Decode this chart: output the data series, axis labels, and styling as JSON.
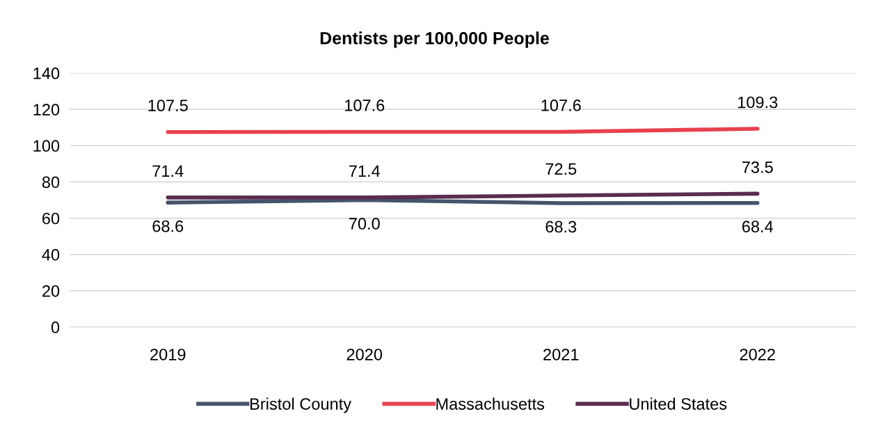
{
  "chart_data": {
    "type": "line",
    "title": "Dentists per 100,000 People",
    "categories": [
      "2019",
      "2020",
      "2021",
      "2022"
    ],
    "series": [
      {
        "name": "Bristol County",
        "color": "#44546a",
        "values": [
          68.6,
          70.0,
          68.3,
          68.4
        ],
        "value_labels": [
          "68.6",
          "70.0",
          "68.3",
          "68.4"
        ]
      },
      {
        "name": "Massachusetts",
        "color": "#e8404e",
        "values": [
          107.5,
          107.6,
          107.6,
          109.3
        ],
        "value_labels": [
          "107.5",
          "107.6",
          "107.6",
          "109.3"
        ]
      },
      {
        "name": "United States",
        "color": "#5a2d50",
        "values": [
          71.4,
          71.4,
          72.5,
          73.5
        ],
        "value_labels": [
          "71.4",
          "71.4",
          "72.5",
          "73.5"
        ]
      }
    ],
    "ylim": [
      0,
      140
    ],
    "yticks": [
      0,
      20,
      40,
      60,
      80,
      100,
      120,
      140
    ],
    "grid": "y",
    "legend": "bottom",
    "marker": "none",
    "line_style": "solid"
  }
}
